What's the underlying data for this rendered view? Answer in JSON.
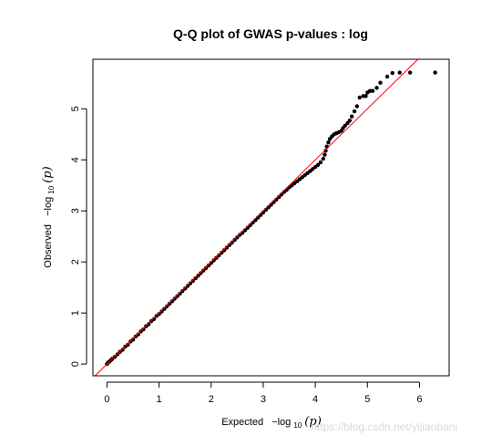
{
  "chart_data": {
    "type": "scatter",
    "title": "Q-Q plot of GWAS p-values : log",
    "xlabel": {
      "prefix": "Expected",
      "expr_text": "−log",
      "sub": "10",
      "var": "(p)"
    },
    "ylabel": {
      "prefix": "Observed",
      "expr_text": "−log",
      "sub": "10",
      "var": "(p)"
    },
    "xlim": [
      -0.27,
      6.57
    ],
    "ylim": [
      -0.23,
      5.97
    ],
    "x_ticks": [
      0,
      1,
      2,
      3,
      4,
      5,
      6
    ],
    "y_ticks": [
      0,
      1,
      2,
      3,
      4,
      5
    ],
    "reference_line": {
      "slope": 1,
      "intercept": 0,
      "color": "#ff0000"
    },
    "point_color": "#000000",
    "series": [
      {
        "points": [
          [
            0.0,
            0.0
          ],
          [
            0.02,
            0.03
          ],
          [
            0.05,
            0.05
          ],
          [
            0.08,
            0.08
          ],
          [
            0.1,
            0.1
          ],
          [
            0.15,
            0.14
          ],
          [
            0.2,
            0.19
          ],
          [
            0.25,
            0.24
          ],
          [
            0.3,
            0.28
          ],
          [
            0.35,
            0.34
          ],
          [
            0.4,
            0.38
          ],
          [
            0.45,
            0.44
          ],
          [
            0.5,
            0.48
          ],
          [
            0.55,
            0.54
          ],
          [
            0.6,
            0.58
          ],
          [
            0.65,
            0.64
          ],
          [
            0.7,
            0.68
          ],
          [
            0.75,
            0.74
          ],
          [
            0.8,
            0.78
          ],
          [
            0.85,
            0.84
          ],
          [
            0.9,
            0.88
          ],
          [
            0.95,
            0.94
          ],
          [
            1.0,
            0.98
          ],
          [
            1.05,
            1.03
          ],
          [
            1.1,
            1.08
          ],
          [
            1.15,
            1.13
          ],
          [
            1.2,
            1.18
          ],
          [
            1.25,
            1.23
          ],
          [
            1.3,
            1.28
          ],
          [
            1.35,
            1.33
          ],
          [
            1.4,
            1.38
          ],
          [
            1.45,
            1.43
          ],
          [
            1.5,
            1.48
          ],
          [
            1.55,
            1.53
          ],
          [
            1.6,
            1.58
          ],
          [
            1.65,
            1.63
          ],
          [
            1.7,
            1.68
          ],
          [
            1.75,
            1.73
          ],
          [
            1.8,
            1.78
          ],
          [
            1.85,
            1.83
          ],
          [
            1.9,
            1.88
          ],
          [
            1.95,
            1.93
          ],
          [
            2.0,
            1.98
          ],
          [
            2.05,
            2.03
          ],
          [
            2.1,
            2.08
          ],
          [
            2.15,
            2.13
          ],
          [
            2.2,
            2.18
          ],
          [
            2.25,
            2.23
          ],
          [
            2.3,
            2.28
          ],
          [
            2.35,
            2.33
          ],
          [
            2.4,
            2.38
          ],
          [
            2.45,
            2.43
          ],
          [
            2.5,
            2.48
          ],
          [
            2.55,
            2.53
          ],
          [
            2.6,
            2.57
          ],
          [
            2.65,
            2.62
          ],
          [
            2.7,
            2.67
          ],
          [
            2.75,
            2.72
          ],
          [
            2.8,
            2.77
          ],
          [
            2.85,
            2.82
          ],
          [
            2.9,
            2.87
          ],
          [
            2.95,
            2.92
          ],
          [
            3.0,
            2.97
          ],
          [
            3.05,
            3.02
          ],
          [
            3.1,
            3.07
          ],
          [
            3.15,
            3.12
          ],
          [
            3.2,
            3.17
          ],
          [
            3.25,
            3.22
          ],
          [
            3.3,
            3.27
          ],
          [
            3.35,
            3.32
          ],
          [
            3.4,
            3.37
          ],
          [
            3.45,
            3.41
          ],
          [
            3.5,
            3.46
          ],
          [
            3.55,
            3.5
          ],
          [
            3.6,
            3.54
          ],
          [
            3.65,
            3.58
          ],
          [
            3.7,
            3.62
          ],
          [
            3.75,
            3.66
          ],
          [
            3.8,
            3.7
          ],
          [
            3.85,
            3.74
          ],
          [
            3.9,
            3.78
          ],
          [
            3.95,
            3.82
          ],
          [
            4.0,
            3.86
          ],
          [
            4.05,
            3.9
          ],
          [
            4.1,
            3.95
          ],
          [
            4.15,
            4.02
          ],
          [
            4.18,
            4.1
          ],
          [
            4.2,
            4.18
          ],
          [
            4.22,
            4.26
          ],
          [
            4.25,
            4.34
          ],
          [
            4.28,
            4.41
          ],
          [
            4.32,
            4.46
          ],
          [
            4.36,
            4.5
          ],
          [
            4.4,
            4.52
          ],
          [
            4.45,
            4.54
          ],
          [
            4.5,
            4.57
          ],
          [
            4.53,
            4.62
          ],
          [
            4.57,
            4.67
          ],
          [
            4.62,
            4.72
          ],
          [
            4.66,
            4.77
          ],
          [
            4.7,
            4.85
          ],
          [
            4.75,
            4.95
          ],
          [
            4.8,
            5.05
          ],
          [
            4.85,
            5.22
          ],
          [
            4.92,
            5.25
          ],
          [
            4.97,
            5.25
          ],
          [
            5.0,
            5.32
          ],
          [
            5.05,
            5.35
          ],
          [
            5.1,
            5.35
          ],
          [
            5.18,
            5.41
          ],
          [
            5.25,
            5.51
          ],
          [
            5.38,
            5.63
          ],
          [
            5.48,
            5.7
          ],
          [
            5.62,
            5.71
          ],
          [
            5.82,
            5.71
          ],
          [
            6.3,
            5.71
          ]
        ]
      }
    ]
  },
  "watermark": "https://blog.csdn.net/yijiaobani"
}
